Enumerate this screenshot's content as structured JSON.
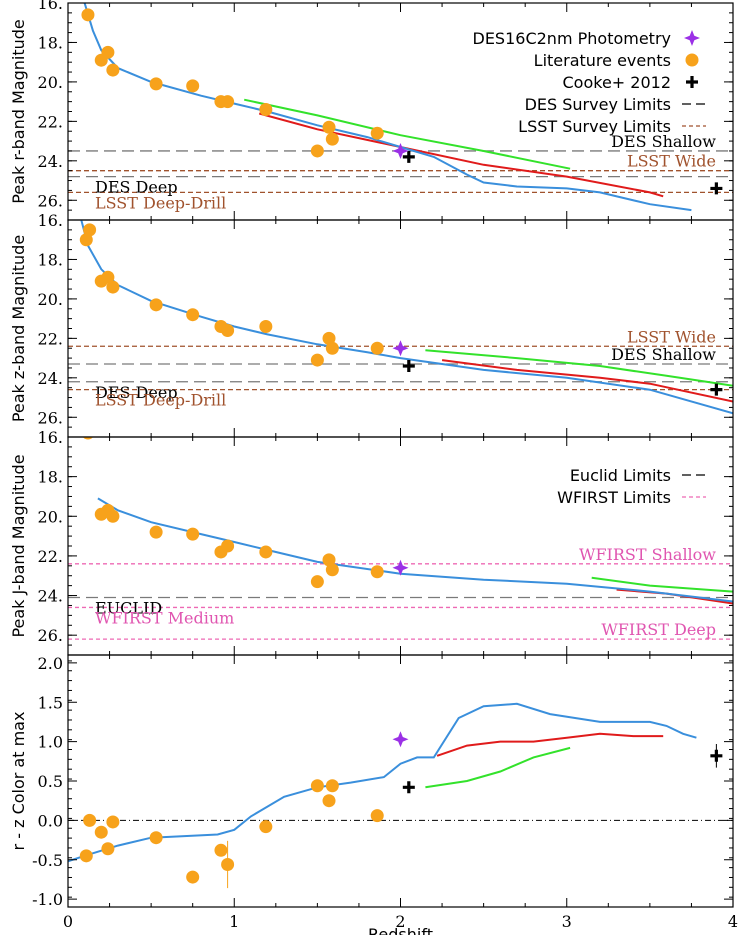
{
  "chart_data": {
    "type": "scatter",
    "colors": {
      "blue_model": "#3a8fdc",
      "red_model": "#e01b1b",
      "green_model": "#33e22b",
      "literature": "#f7a21b",
      "des16": "#9b30e6",
      "cooke": "#000000",
      "des_limit": "#7a7a7a",
      "lsst_limit": "#a0522d",
      "lsst_text": "#a0522d",
      "wfirst_limit": "#ee69b4",
      "wfirst_text": "#e055b0"
    },
    "xlabel": "Redshift",
    "xlim": [
      0,
      4
    ],
    "xticks": [
      0,
      1,
      2,
      3,
      4
    ],
    "xtick_labels": [
      "0",
      "1",
      "2",
      "3",
      "4"
    ],
    "legend_items": {
      "des16": "DES16C2nm Photometry",
      "literature": "Literature events",
      "cooke": "Cooke+ 2012",
      "des_limits": "DES Survey Limits",
      "lsst_limits": "LSST Survey Limits",
      "euclid_limits": "Euclid Limits",
      "wfirst_limits": "WFIRST Limits"
    },
    "panels": [
      {
        "id": "r",
        "ylabel": "Peak r-band Magnitude",
        "ylim": [
          16,
          27
        ],
        "inverted": true,
        "yticks": [
          16,
          18,
          20,
          22,
          24,
          26
        ],
        "ytick_labels": [
          "16.",
          "18.",
          "20.",
          "22.",
          "24.",
          "26."
        ],
        "literature": [
          [
            0.12,
            16.6
          ],
          [
            0.2,
            18.9
          ],
          [
            0.24,
            18.5
          ],
          [
            0.27,
            19.4
          ],
          [
            0.53,
            20.1
          ],
          [
            0.75,
            20.2
          ],
          [
            0.92,
            21.0
          ],
          [
            0.96,
            21.0
          ],
          [
            1.19,
            21.4
          ],
          [
            1.5,
            23.5
          ],
          [
            1.57,
            22.3
          ],
          [
            1.59,
            22.9
          ],
          [
            1.86,
            22.6
          ]
        ],
        "des16": [
          [
            2.0,
            23.5
          ]
        ],
        "cooke": [
          [
            2.05,
            23.8
          ],
          [
            3.9,
            25.4
          ]
        ],
        "curves": {
          "blue": [
            [
              0.1,
              16.0
            ],
            [
              0.15,
              17.4
            ],
            [
              0.2,
              18.4
            ],
            [
              0.3,
              19.3
            ],
            [
              0.5,
              20.0
            ],
            [
              0.8,
              20.7
            ],
            [
              1.0,
              21.1
            ],
            [
              1.2,
              21.5
            ],
            [
              1.5,
              22.2
            ],
            [
              1.8,
              22.8
            ],
            [
              2.0,
              23.3
            ],
            [
              2.2,
              23.8
            ],
            [
              2.4,
              24.7
            ],
            [
              2.5,
              25.1
            ],
            [
              2.7,
              25.3
            ],
            [
              3.0,
              25.4
            ],
            [
              3.2,
              25.6
            ],
            [
              3.5,
              26.2
            ],
            [
              3.75,
              26.5
            ]
          ],
          "red": [
            [
              1.15,
              21.6
            ],
            [
              1.5,
              22.4
            ],
            [
              2.0,
              23.3
            ],
            [
              2.5,
              24.2
            ],
            [
              3.0,
              24.8
            ],
            [
              3.5,
              25.6
            ],
            [
              3.58,
              25.8
            ]
          ],
          "green": [
            [
              1.06,
              20.9
            ],
            [
              1.5,
              21.7
            ],
            [
              2.0,
              22.7
            ],
            [
              2.5,
              23.5
            ],
            [
              3.02,
              24.4
            ]
          ]
        },
        "limits": [
          {
            "kind": "des",
            "value": 23.5,
            "label": "DES Shallow",
            "label_pos": "right"
          },
          {
            "kind": "lsst",
            "value": 24.5,
            "label": "LSST Wide",
            "label_pos": "right"
          },
          {
            "kind": "des",
            "value": 24.8,
            "label": "DES Deep",
            "label_pos": "left"
          },
          {
            "kind": "lsst",
            "value": 25.6,
            "label": "LSST Deep-Drill",
            "label_pos": "left"
          }
        ]
      },
      {
        "id": "z",
        "ylabel": "Peak z-band Magnitude",
        "ylim": [
          16,
          27
        ],
        "inverted": true,
        "yticks": [
          16,
          18,
          20,
          22,
          24,
          26
        ],
        "ytick_labels": [
          "16.",
          "18.",
          "20.",
          "22.",
          "24.",
          "26."
        ],
        "literature": [
          [
            0.11,
            17.0
          ],
          [
            0.13,
            16.5
          ],
          [
            0.2,
            19.1
          ],
          [
            0.24,
            18.9
          ],
          [
            0.27,
            19.4
          ],
          [
            0.53,
            20.3
          ],
          [
            0.75,
            20.8
          ],
          [
            0.92,
            21.4
          ],
          [
            0.96,
            21.6
          ],
          [
            1.19,
            21.4
          ],
          [
            1.5,
            23.1
          ],
          [
            1.57,
            22.0
          ],
          [
            1.59,
            22.5
          ],
          [
            1.86,
            22.5
          ]
        ],
        "des16": [
          [
            2.0,
            22.5
          ]
        ],
        "cooke": [
          [
            2.05,
            23.4
          ],
          [
            3.9,
            24.6
          ]
        ],
        "curves": {
          "blue": [
            [
              0.08,
              16.0
            ],
            [
              0.12,
              17.3
            ],
            [
              0.2,
              18.5
            ],
            [
              0.3,
              19.3
            ],
            [
              0.5,
              20.1
            ],
            [
              0.8,
              20.9
            ],
            [
              1.0,
              21.4
            ],
            [
              1.2,
              21.8
            ],
            [
              1.5,
              22.3
            ],
            [
              1.8,
              22.7
            ],
            [
              2.0,
              23.0
            ],
            [
              2.5,
              23.6
            ],
            [
              3.0,
              24.0
            ],
            [
              3.5,
              24.6
            ],
            [
              4.0,
              25.8
            ]
          ],
          "red": [
            [
              2.25,
              23.1
            ],
            [
              2.7,
              23.6
            ],
            [
              3.2,
              24.0
            ],
            [
              3.5,
              24.3
            ],
            [
              4.0,
              25.2
            ]
          ],
          "green": [
            [
              2.15,
              22.6
            ],
            [
              2.7,
              23.0
            ],
            [
              3.2,
              23.4
            ],
            [
              3.6,
              23.9
            ],
            [
              4.0,
              24.4
            ]
          ]
        },
        "limits": [
          {
            "kind": "lsst",
            "value": 22.4,
            "label": "LSST Wide",
            "label_pos": "right"
          },
          {
            "kind": "des",
            "value": 23.3,
            "label": "DES Shallow",
            "label_pos": "right"
          },
          {
            "kind": "des",
            "value": 24.2,
            "label": "DES Deep",
            "label_pos": "left"
          },
          {
            "kind": "lsst",
            "value": 24.6,
            "label": "LSST Deep-Drill",
            "label_pos": "left"
          }
        ]
      },
      {
        "id": "J",
        "ylabel": "Peak J-band Magnitude",
        "ylim": [
          16,
          27
        ],
        "inverted": true,
        "yticks": [
          16,
          18,
          20,
          22,
          24,
          26
        ],
        "ytick_labels": [
          "16.",
          "18.",
          "20.",
          "22.",
          "24.",
          "26."
        ],
        "literature": [
          [
            0.12,
            15.8
          ],
          [
            0.2,
            19.9
          ],
          [
            0.24,
            19.7
          ],
          [
            0.27,
            20.0
          ],
          [
            0.53,
            20.8
          ],
          [
            0.75,
            20.9
          ],
          [
            0.92,
            21.8
          ],
          [
            0.96,
            21.5
          ],
          [
            1.19,
            21.8
          ],
          [
            1.5,
            23.3
          ],
          [
            1.57,
            22.2
          ],
          [
            1.59,
            22.7
          ],
          [
            1.86,
            22.8
          ]
        ],
        "des16": [
          [
            2.0,
            22.6
          ]
        ],
        "cooke": [],
        "curves": {
          "blue": [
            [
              0.18,
              19.1
            ],
            [
              0.3,
              19.7
            ],
            [
              0.5,
              20.3
            ],
            [
              0.8,
              20.9
            ],
            [
              1.0,
              21.3
            ],
            [
              1.2,
              21.7
            ],
            [
              1.5,
              22.3
            ],
            [
              2.0,
              22.9
            ],
            [
              2.5,
              23.2
            ],
            [
              3.0,
              23.4
            ],
            [
              3.5,
              23.8
            ],
            [
              4.0,
              24.3
            ]
          ],
          "red": [
            [
              3.3,
              23.7
            ],
            [
              3.6,
              23.9
            ],
            [
              4.0,
              24.4
            ]
          ],
          "green": [
            [
              3.15,
              23.1
            ],
            [
              3.5,
              23.5
            ],
            [
              4.0,
              23.8
            ]
          ]
        },
        "limits": [
          {
            "kind": "wfirst",
            "value": 22.4,
            "label": "WFIRST Shallow",
            "label_pos": "right"
          },
          {
            "kind": "des",
            "value": 24.1,
            "label": "EUCLID",
            "label_pos": "left"
          },
          {
            "kind": "wfirst",
            "value": 24.6,
            "label": "WFIRST Medium",
            "label_pos": "left"
          },
          {
            "kind": "wfirst",
            "value": 26.2,
            "label": "WFIRST Deep",
            "label_pos": "right"
          }
        ]
      },
      {
        "id": "color",
        "ylabel": "r - z Color at max",
        "ylim": [
          -1.1,
          2.1
        ],
        "inverted": false,
        "yticks": [
          -1.0,
          -0.5,
          0.0,
          0.5,
          1.0,
          1.5,
          2.0
        ],
        "ytick_labels": [
          "-1.0",
          "-0.5",
          "0.0",
          "0.5",
          "1.0",
          "1.5",
          "2.0"
        ],
        "literature": [
          [
            0.11,
            -0.45
          ],
          [
            0.13,
            0.0
          ],
          [
            0.2,
            -0.15
          ],
          [
            0.24,
            -0.36
          ],
          [
            0.27,
            -0.02
          ],
          [
            0.53,
            -0.22
          ],
          [
            0.75,
            -0.72
          ],
          [
            0.92,
            -0.38
          ],
          [
            0.96,
            -0.56
          ],
          [
            1.19,
            -0.08
          ],
          [
            1.5,
            0.44
          ],
          [
            1.57,
            0.25
          ],
          [
            1.59,
            0.44
          ],
          [
            1.86,
            0.06
          ]
        ],
        "literature_errorbars": [
          [
            0.96,
            -0.56,
            0.3
          ]
        ],
        "des16": [
          [
            2.0,
            1.03
          ]
        ],
        "cooke": [
          [
            2.05,
            0.42
          ],
          [
            3.9,
            0.82
          ]
        ],
        "cooke_errorbars": [
          [
            3.9,
            0.82,
            0.15
          ]
        ],
        "curves": {
          "blue": [
            [
              0.0,
              -0.52
            ],
            [
              0.1,
              -0.45
            ],
            [
              0.3,
              -0.32
            ],
            [
              0.5,
              -0.22
            ],
            [
              0.7,
              -0.2
            ],
            [
              0.9,
              -0.18
            ],
            [
              1.0,
              -0.12
            ],
            [
              1.1,
              0.05
            ],
            [
              1.3,
              0.3
            ],
            [
              1.5,
              0.42
            ],
            [
              1.7,
              0.48
            ],
            [
              1.9,
              0.55
            ],
            [
              2.0,
              0.72
            ],
            [
              2.1,
              0.8
            ],
            [
              2.2,
              0.8
            ],
            [
              2.35,
              1.3
            ],
            [
              2.5,
              1.45
            ],
            [
              2.7,
              1.48
            ],
            [
              2.9,
              1.35
            ],
            [
              3.2,
              1.25
            ],
            [
              3.5,
              1.25
            ],
            [
              3.6,
              1.2
            ],
            [
              3.7,
              1.1
            ],
            [
              3.78,
              1.05
            ]
          ],
          "red": [
            [
              2.22,
              0.82
            ],
            [
              2.4,
              0.95
            ],
            [
              2.6,
              1.0
            ],
            [
              2.8,
              1.0
            ],
            [
              3.0,
              1.05
            ],
            [
              3.2,
              1.1
            ],
            [
              3.4,
              1.07
            ],
            [
              3.58,
              1.07
            ]
          ],
          "green": [
            [
              2.15,
              0.42
            ],
            [
              2.4,
              0.5
            ],
            [
              2.6,
              0.62
            ],
            [
              2.8,
              0.8
            ],
            [
              3.02,
              0.92
            ]
          ]
        },
        "zero_line": 0.0,
        "limits": []
      }
    ]
  }
}
